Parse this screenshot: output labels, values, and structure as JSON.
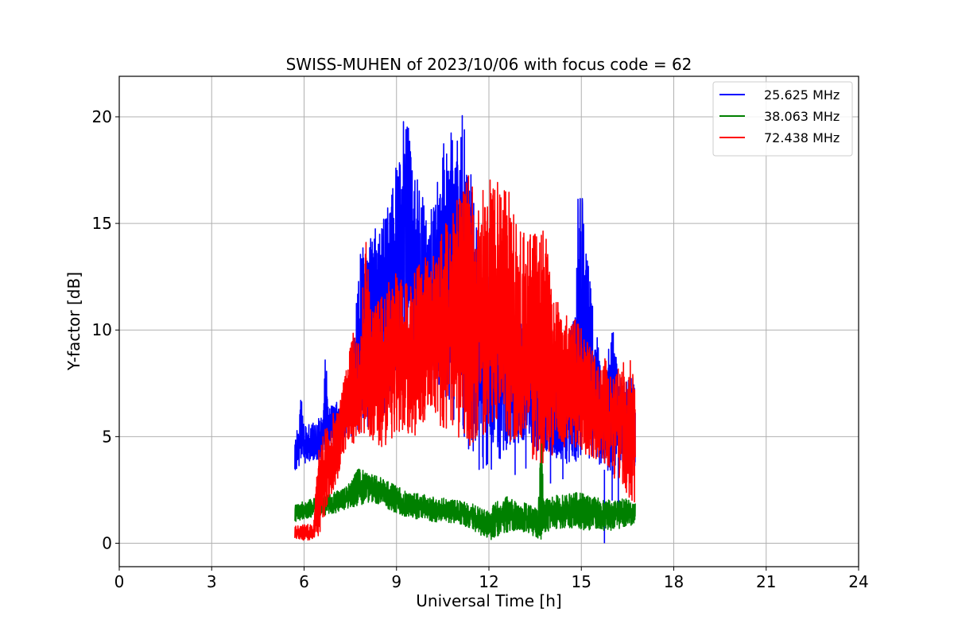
{
  "chart_data": {
    "type": "line",
    "title": "SWISS-MUHEN of 2023/10/06 with focus code = 62",
    "xlabel": "Universal Time [h]",
    "ylabel": "Y-factor [dB]",
    "xlim": [
      0,
      24
    ],
    "ylim": [
      -1.1,
      21.9
    ],
    "xticks": [
      0,
      3,
      6,
      9,
      12,
      15,
      18,
      21,
      24
    ],
    "yticks": [
      0,
      5,
      10,
      15,
      20
    ],
    "grid": true,
    "legend_position": "top-right",
    "series": [
      {
        "name": "25.625 MHz",
        "color": "#0000ff",
        "x": [
          5.7,
          5.8,
          5.9,
          6.0,
          6.2,
          6.4,
          6.6,
          6.7,
          6.8,
          7.0,
          7.2,
          7.4,
          7.6,
          7.8,
          8.0,
          8.2,
          8.4,
          8.6,
          8.8,
          9.0,
          9.2,
          9.35,
          9.5,
          9.7,
          9.9,
          10.0,
          10.2,
          10.4,
          10.6,
          10.8,
          10.9,
          11.0,
          11.2,
          11.4,
          11.6,
          11.8,
          12.0,
          12.2,
          12.4,
          12.6,
          12.8,
          13.0,
          13.2,
          13.4,
          13.6,
          13.8,
          14.0,
          14.2,
          14.4,
          14.6,
          14.8,
          14.9,
          15.0,
          15.2,
          15.4,
          15.6,
          15.8,
          16.0,
          16.2,
          16.4,
          16.6,
          16.75
        ],
        "lo": [
          3.4,
          3.5,
          3.6,
          3.7,
          3.8,
          3.9,
          4.0,
          4.0,
          4.2,
          4.5,
          4.8,
          5.0,
          5.0,
          5.0,
          5.2,
          5.4,
          5.6,
          6.0,
          6.5,
          7.0,
          7.5,
          8.0,
          7.8,
          7.6,
          7.5,
          7.8,
          7.5,
          7.2,
          6.5,
          6.0,
          5.5,
          5.0,
          4.5,
          4.0,
          3.5,
          3.2,
          3.3,
          3.6,
          4.0,
          4.2,
          4.3,
          4.5,
          4.8,
          4.6,
          4.3,
          4.2,
          4.0,
          4.0,
          3.8,
          3.6,
          3.5,
          3.5,
          3.6,
          3.7,
          3.8,
          3.6,
          3.4,
          3.2,
          3.3,
          3.3,
          3.4,
          3.6
        ],
        "hi": [
          5.6,
          5.2,
          7.0,
          5.5,
          5.6,
          5.8,
          6.1,
          9.1,
          6.4,
          6.6,
          6.8,
          7.2,
          9.5,
          13.7,
          14.0,
          14.8,
          15.0,
          15.5,
          16.5,
          18.5,
          19.8,
          20.4,
          18.0,
          17.0,
          16.0,
          15.5,
          16.0,
          17.5,
          19.5,
          20.0,
          20.6,
          20.9,
          20.2,
          17.5,
          15.5,
          14.5,
          14.0,
          13.0,
          12.0,
          11.5,
          11.0,
          10.5,
          9.5,
          9.0,
          8.8,
          8.5,
          8.0,
          7.8,
          7.5,
          10.0,
          11.0,
          16.9,
          16.5,
          14.6,
          10.5,
          9.0,
          8.5,
          10.6,
          8.0,
          7.5,
          7.9,
          7.2
        ],
        "min_point": [
          15.75,
          0.0
        ],
        "spikes": [
          [
            12.85,
            3.2
          ],
          [
            13.2,
            3.5
          ],
          [
            13.75,
            5.6
          ],
          [
            14.0,
            2.8
          ],
          [
            14.4,
            3.0
          ],
          [
            16.0,
            2.0
          ],
          [
            16.2,
            1.3
          ]
        ]
      },
      {
        "name": "38.063 MHz",
        "color": "#008000",
        "x": [
          5.7,
          6.0,
          6.3,
          6.6,
          7.0,
          7.4,
          7.8,
          8.2,
          8.6,
          9.0,
          9.4,
          9.8,
          10.2,
          10.6,
          11.0,
          11.4,
          11.8,
          12.0,
          12.2,
          12.6,
          13.0,
          13.4,
          13.6,
          13.7,
          13.8,
          14.0,
          14.4,
          14.8,
          15.2,
          15.6,
          16.0,
          16.4,
          16.75
        ],
        "lo": [
          1.0,
          1.1,
          1.2,
          1.3,
          1.4,
          1.6,
          1.8,
          1.9,
          1.7,
          1.4,
          1.2,
          1.1,
          1.0,
          1.0,
          0.9,
          0.7,
          0.3,
          0.1,
          0.3,
          0.5,
          0.5,
          0.4,
          0.1,
          0.2,
          0.5,
          0.6,
          0.7,
          0.7,
          0.6,
          0.6,
          0.6,
          0.7,
          0.9
        ],
        "hi": [
          1.8,
          2.0,
          2.1,
          2.2,
          2.4,
          2.7,
          3.6,
          3.3,
          3.0,
          2.7,
          2.4,
          2.3,
          2.2,
          2.1,
          2.0,
          1.9,
          1.6,
          1.5,
          1.9,
          2.2,
          2.0,
          1.8,
          1.6,
          5.6,
          2.0,
          2.2,
          2.3,
          2.4,
          2.3,
          2.1,
          2.0,
          2.1,
          1.9
        ]
      },
      {
        "name": "72.438 MHz",
        "color": "#ff0000",
        "x": [
          5.7,
          6.0,
          6.3,
          6.5,
          6.6,
          6.8,
          7.0,
          7.2,
          7.4,
          7.6,
          7.8,
          8.0,
          8.2,
          8.4,
          8.6,
          8.8,
          9.0,
          9.2,
          9.4,
          9.6,
          9.8,
          10.0,
          10.2,
          10.4,
          10.6,
          10.8,
          11.0,
          11.2,
          11.4,
          11.6,
          11.8,
          12.0,
          12.2,
          12.4,
          12.6,
          12.8,
          13.0,
          13.2,
          13.4,
          13.6,
          13.8,
          14.0,
          14.2,
          14.4,
          14.6,
          14.8,
          15.0,
          15.2,
          15.4,
          15.6,
          15.8,
          16.0,
          16.2,
          16.4,
          16.6,
          16.75
        ],
        "lo": [
          0.2,
          0.1,
          0.2,
          0.3,
          1.0,
          1.8,
          2.5,
          3.5,
          4.5,
          4.5,
          5.0,
          5.0,
          4.8,
          4.5,
          4.5,
          4.8,
          5.0,
          5.2,
          5.0,
          5.0,
          5.5,
          6.0,
          6.2,
          5.5,
          5.2,
          5.0,
          5.0,
          4.8,
          4.5,
          4.8,
          5.0,
          5.2,
          5.5,
          5.5,
          5.0,
          4.5,
          4.5,
          4.0,
          3.5,
          3.5,
          3.8,
          4.0,
          4.0,
          4.2,
          4.3,
          4.2,
          4.0,
          4.2,
          4.0,
          3.8,
          3.5,
          3.0,
          3.0,
          2.5,
          1.8,
          1.5
        ],
        "hi": [
          0.8,
          0.9,
          0.9,
          4.8,
          5.2,
          5.8,
          6.2,
          7.0,
          8.5,
          10.0,
          10.0,
          14.3,
          11.0,
          11.5,
          12.0,
          12.5,
          13.0,
          12.8,
          12.5,
          13.0,
          13.5,
          13.5,
          13.8,
          14.8,
          15.0,
          15.5,
          16.2,
          17.0,
          17.5,
          16.0,
          16.8,
          17.0,
          17.2,
          16.5,
          16.8,
          15.5,
          15.0,
          14.8,
          14.5,
          15.0,
          14.8,
          13.0,
          11.5,
          10.5,
          11.0,
          10.5,
          10.2,
          9.5,
          9.0,
          8.5,
          8.8,
          8.0,
          8.3,
          8.5,
          8.8,
          7.5
        ]
      }
    ]
  }
}
